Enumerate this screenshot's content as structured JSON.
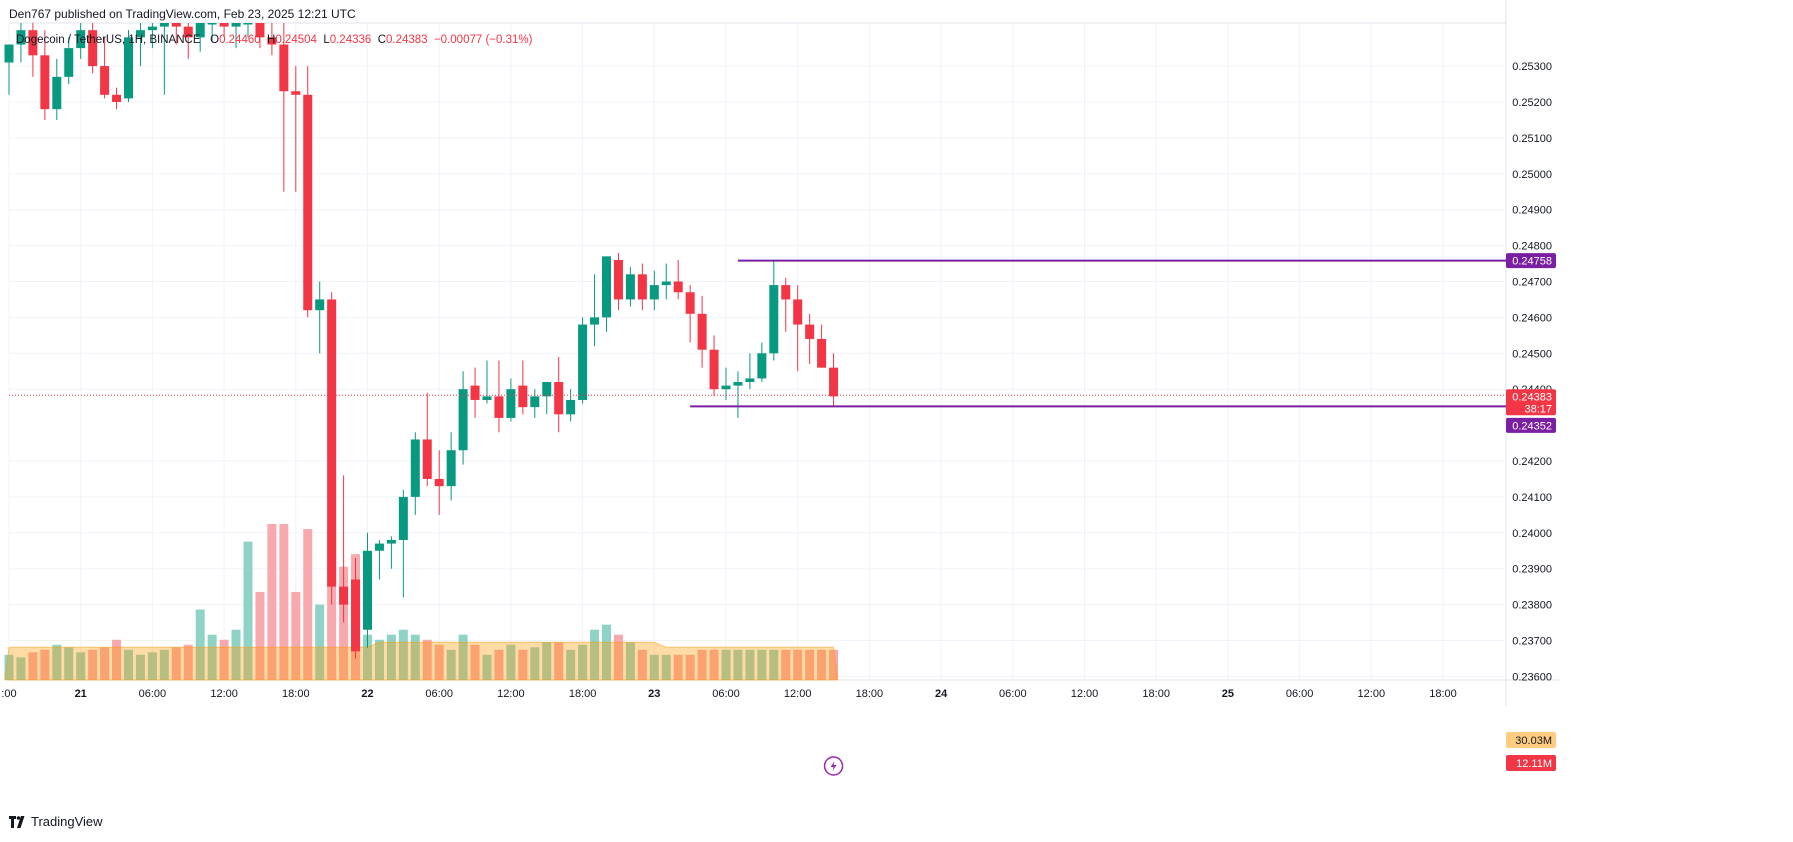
{
  "header": {
    "published": "Den767 published on TradingView.com, Feb 23, 2025 12:21 UTC",
    "symbol": "Dogecoin / TetherUS, 1H, BINANCE",
    "o_label": "O",
    "o_value": "0.24460",
    "h_label": "H",
    "h_value": "0.24504",
    "l_label": "L",
    "l_value": "0.24336",
    "c_label": "C",
    "c_value": "0.24383",
    "change": "−0.00077 (−0.31%)"
  },
  "brand": {
    "name": "TradingView"
  },
  "colors": {
    "up": "#089981",
    "down": "#f23645",
    "line": "#7b1fa2",
    "vol_ma": "#ff9800"
  },
  "badges": {
    "level_high": "0.24758",
    "last_price": "0.24383",
    "countdown": "38:17",
    "level_low": "0.24352",
    "vol_ma": "30.03M",
    "vol": "12.11M"
  },
  "chart_data": {
    "type": "candlestick",
    "title": "Dogecoin / TetherUS, 1H, BINANCE",
    "ylim": [
      0.2359,
      0.2542
    ],
    "y_ticks": [
      "0.25300",
      "0.25200",
      "0.25100",
      "0.25000",
      "0.24900",
      "0.24800",
      "0.24700",
      "0.24600",
      "0.24500",
      "0.24400",
      "0.24200",
      "0.24100",
      "0.24000",
      "0.23900",
      "0.23800",
      "0.23700",
      "0.23600"
    ],
    "x_ticks": [
      ":00",
      "21",
      "06:00",
      "12:00",
      "18:00",
      "22",
      "06:00",
      "12:00",
      "18:00",
      "23",
      "06:00",
      "12:00",
      "18:00",
      "24",
      "06:00",
      "12:00",
      "18:00",
      "25",
      "06:00",
      "12:00",
      "18:00"
    ],
    "x_tick_slots": [
      0,
      6,
      12,
      18,
      24,
      30,
      36,
      42,
      48,
      54,
      60,
      66,
      72,
      78,
      84,
      90,
      96,
      102,
      108,
      114,
      120
    ],
    "horizontal_levels": [
      {
        "price": 0.24758,
        "from_slot": 61
      },
      {
        "price": 0.24352,
        "from_slot": 57
      }
    ],
    "candles": [
      {
        "o": 0.2531,
        "h": 0.2536,
        "l": 0.2522,
        "c": 0.2536,
        "v": 10
      },
      {
        "o": 0.2536,
        "h": 0.2542,
        "l": 0.2531,
        "c": 0.254,
        "v": 9
      },
      {
        "o": 0.254,
        "h": 0.2542,
        "l": 0.2527,
        "c": 0.2533,
        "v": 11
      },
      {
        "o": 0.2533,
        "h": 0.254,
        "l": 0.2515,
        "c": 0.2518,
        "v": 12
      },
      {
        "o": 0.2518,
        "h": 0.2532,
        "l": 0.2515,
        "c": 0.2527,
        "v": 14
      },
      {
        "o": 0.2527,
        "h": 0.2538,
        "l": 0.2525,
        "c": 0.2535,
        "v": 13
      },
      {
        "o": 0.2535,
        "h": 0.2542,
        "l": 0.2532,
        "c": 0.254,
        "v": 11
      },
      {
        "o": 0.254,
        "h": 0.2542,
        "l": 0.2528,
        "c": 0.253,
        "v": 12
      },
      {
        "o": 0.253,
        "h": 0.2538,
        "l": 0.2521,
        "c": 0.2522,
        "v": 13
      },
      {
        "o": 0.2522,
        "h": 0.2524,
        "l": 0.2518,
        "c": 0.252,
        "v": 16
      },
      {
        "o": 0.2521,
        "h": 0.254,
        "l": 0.252,
        "c": 0.2538,
        "v": 12
      },
      {
        "o": 0.2538,
        "h": 0.2542,
        "l": 0.253,
        "c": 0.254,
        "v": 10
      },
      {
        "o": 0.254,
        "h": 0.2542,
        "l": 0.2535,
        "c": 0.2541,
        "v": 11
      },
      {
        "o": 0.2541,
        "h": 0.2542,
        "l": 0.2522,
        "c": 0.2542,
        "v": 12
      },
      {
        "o": 0.2542,
        "h": 0.2542,
        "l": 0.2536,
        "c": 0.2541,
        "v": 13
      },
      {
        "o": 0.2541,
        "h": 0.2542,
        "l": 0.2532,
        "c": 0.2538,
        "v": 14
      },
      {
        "o": 0.2538,
        "h": 0.2542,
        "l": 0.2534,
        "c": 0.2542,
        "v": 28
      },
      {
        "o": 0.2542,
        "h": 0.2542,
        "l": 0.2537,
        "c": 0.2542,
        "v": 18
      },
      {
        "o": 0.2542,
        "h": 0.2542,
        "l": 0.2538,
        "c": 0.2541,
        "v": 16
      },
      {
        "o": 0.2541,
        "h": 0.2542,
        "l": 0.2535,
        "c": 0.2542,
        "v": 20
      },
      {
        "o": 0.2542,
        "h": 0.2542,
        "l": 0.2538,
        "c": 0.2542,
        "v": 55
      },
      {
        "o": 0.2542,
        "h": 0.2542,
        "l": 0.2535,
        "c": 0.2538,
        "v": 35
      },
      {
        "o": 0.2538,
        "h": 0.2542,
        "l": 0.2533,
        "c": 0.2536,
        "v": 62
      },
      {
        "o": 0.2536,
        "h": 0.2542,
        "l": 0.2495,
        "c": 0.2523,
        "v": 62
      },
      {
        "o": 0.2523,
        "h": 0.253,
        "l": 0.2495,
        "c": 0.2522,
        "v": 35
      },
      {
        "o": 0.2522,
        "h": 0.253,
        "l": 0.246,
        "c": 0.2462,
        "v": 60
      },
      {
        "o": 0.2462,
        "h": 0.247,
        "l": 0.245,
        "c": 0.2465,
        "v": 30
      },
      {
        "o": 0.2465,
        "h": 0.2467,
        "l": 0.238,
        "c": 0.2385,
        "v": 60
      },
      {
        "o": 0.2385,
        "h": 0.2416,
        "l": 0.2375,
        "c": 0.238,
        "v": 45
      },
      {
        "o": 0.2387,
        "h": 0.2393,
        "l": 0.2365,
        "c": 0.2367,
        "v": 50
      },
      {
        "o": 0.2373,
        "h": 0.24,
        "l": 0.2368,
        "c": 0.2395,
        "v": 18
      },
      {
        "o": 0.2395,
        "h": 0.2398,
        "l": 0.2387,
        "c": 0.2397,
        "v": 16
      },
      {
        "o": 0.2397,
        "h": 0.2399,
        "l": 0.239,
        "c": 0.2398,
        "v": 18
      },
      {
        "o": 0.2398,
        "h": 0.2412,
        "l": 0.2382,
        "c": 0.241,
        "v": 20
      },
      {
        "o": 0.241,
        "h": 0.2428,
        "l": 0.2405,
        "c": 0.2426,
        "v": 18
      },
      {
        "o": 0.2426,
        "h": 0.2439,
        "l": 0.2413,
        "c": 0.2415,
        "v": 16
      },
      {
        "o": 0.2415,
        "h": 0.2423,
        "l": 0.2405,
        "c": 0.2413,
        "v": 14
      },
      {
        "o": 0.2413,
        "h": 0.2428,
        "l": 0.2409,
        "c": 0.2423,
        "v": 12
      },
      {
        "o": 0.2423,
        "h": 0.2445,
        "l": 0.2419,
        "c": 0.244,
        "v": 18
      },
      {
        "o": 0.2441,
        "h": 0.2446,
        "l": 0.2432,
        "c": 0.2437,
        "v": 14
      },
      {
        "o": 0.2437,
        "h": 0.2448,
        "l": 0.2436,
        "c": 0.2438,
        "v": 10
      },
      {
        "o": 0.2438,
        "h": 0.2448,
        "l": 0.2428,
        "c": 0.2432,
        "v": 12
      },
      {
        "o": 0.2432,
        "h": 0.2443,
        "l": 0.2431,
        "c": 0.244,
        "v": 14
      },
      {
        "o": 0.2441,
        "h": 0.2448,
        "l": 0.2433,
        "c": 0.2435,
        "v": 12
      },
      {
        "o": 0.2435,
        "h": 0.244,
        "l": 0.2432,
        "c": 0.2438,
        "v": 13
      },
      {
        "o": 0.2438,
        "h": 0.2442,
        "l": 0.2433,
        "c": 0.2442,
        "v": 15
      },
      {
        "o": 0.2442,
        "h": 0.2449,
        "l": 0.2428,
        "c": 0.2433,
        "v": 15
      },
      {
        "o": 0.2433,
        "h": 0.244,
        "l": 0.2431,
        "c": 0.2437,
        "v": 12
      },
      {
        "o": 0.2437,
        "h": 0.246,
        "l": 0.2436,
        "c": 0.2458,
        "v": 14
      },
      {
        "o": 0.2458,
        "h": 0.2472,
        "l": 0.2452,
        "c": 0.246,
        "v": 20
      },
      {
        "o": 0.246,
        "h": 0.2477,
        "l": 0.2456,
        "c": 0.2477,
        "v": 22
      },
      {
        "o": 0.2476,
        "h": 0.2478,
        "l": 0.2462,
        "c": 0.2465,
        "v": 18
      },
      {
        "o": 0.2465,
        "h": 0.2474,
        "l": 0.2463,
        "c": 0.2472,
        "v": 15
      },
      {
        "o": 0.2472,
        "h": 0.2475,
        "l": 0.2462,
        "c": 0.2465,
        "v": 12
      },
      {
        "o": 0.2465,
        "h": 0.2473,
        "l": 0.2462,
        "c": 0.2469,
        "v": 10
      },
      {
        "o": 0.2469,
        "h": 0.2475,
        "l": 0.2465,
        "c": 0.247,
        "v": 10
      },
      {
        "o": 0.247,
        "h": 0.2476,
        "l": 0.2465,
        "c": 0.2467,
        "v": 10
      },
      {
        "o": 0.2467,
        "h": 0.2469,
        "l": 0.2453,
        "c": 0.2461,
        "v": 10
      },
      {
        "o": 0.2461,
        "h": 0.2466,
        "l": 0.2446,
        "c": 0.2451,
        "v": 12
      },
      {
        "o": 0.2451,
        "h": 0.2455,
        "l": 0.2438,
        "c": 0.244,
        "v": 12
      },
      {
        "o": 0.244,
        "h": 0.2446,
        "l": 0.2437,
        "c": 0.2441,
        "v": 12
      },
      {
        "o": 0.2441,
        "h": 0.2445,
        "l": 0.2432,
        "c": 0.2442,
        "v": 12
      },
      {
        "o": 0.2442,
        "h": 0.245,
        "l": 0.244,
        "c": 0.2443,
        "v": 12
      },
      {
        "o": 0.2443,
        "h": 0.2453,
        "l": 0.2442,
        "c": 0.245,
        "v": 12
      },
      {
        "o": 0.245,
        "h": 0.2476,
        "l": 0.2448,
        "c": 0.2469,
        "v": 12
      },
      {
        "o": 0.2469,
        "h": 0.2471,
        "l": 0.2456,
        "c": 0.2465,
        "v": 12
      },
      {
        "o": 0.2465,
        "h": 0.2469,
        "l": 0.2445,
        "c": 0.2458,
        "v": 12
      },
      {
        "o": 0.2458,
        "h": 0.2461,
        "l": 0.2447,
        "c": 0.2454,
        "v": 12
      },
      {
        "o": 0.2454,
        "h": 0.2458,
        "l": 0.2446,
        "c": 0.2446,
        "v": 12
      },
      {
        "o": 0.2446,
        "h": 0.245,
        "l": 0.2435,
        "c": 0.2438,
        "v": 12
      }
    ],
    "volume_note": "volume in relative units; MA 30.03M, last 12.11M"
  }
}
